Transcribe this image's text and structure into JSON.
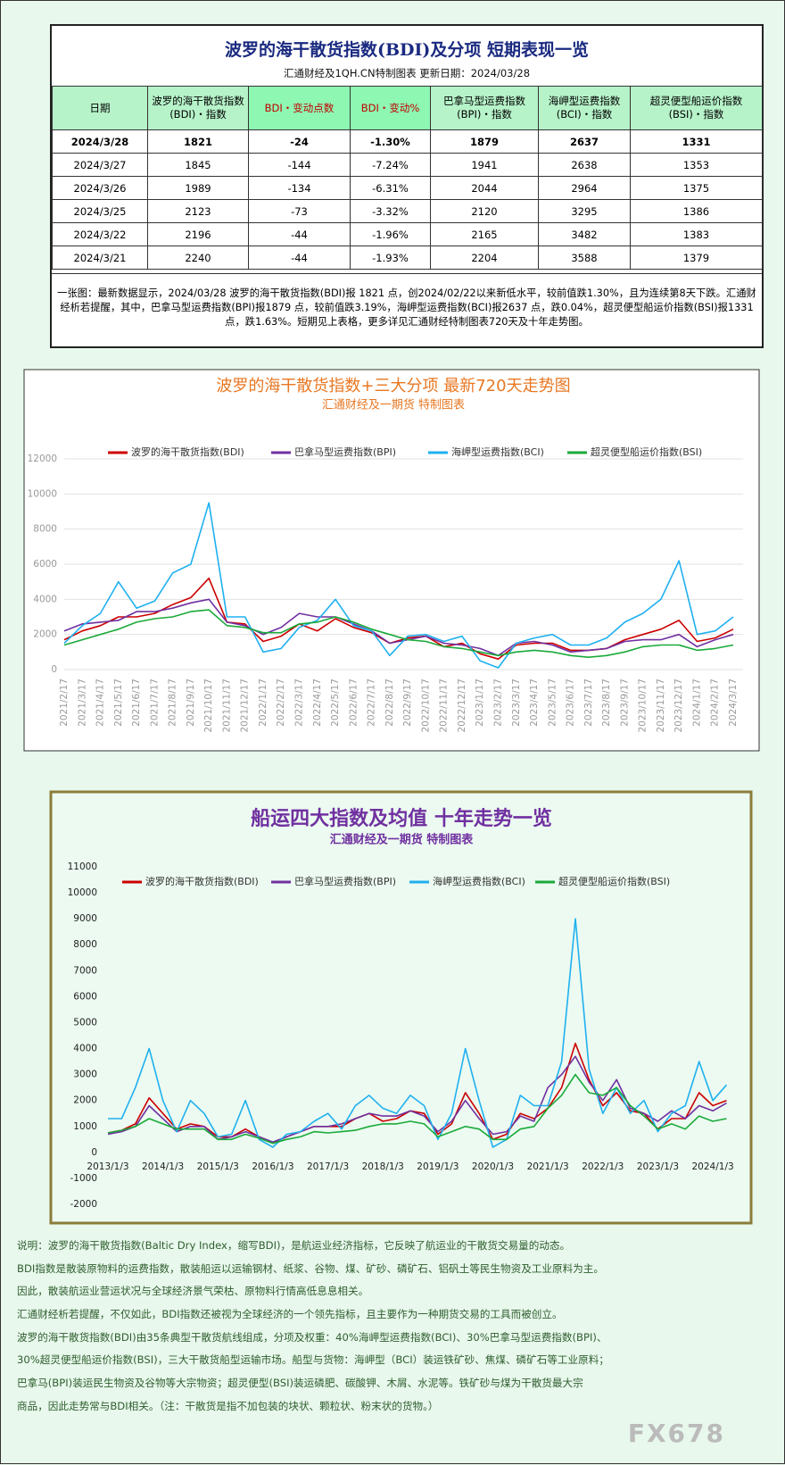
{
  "header": {
    "title": "波罗的海干散货指数(BDI)及分项  短期表现一览",
    "subtitle": "汇通财经及1QH.CN特制图表    更新日期：2024/03/28"
  },
  "table": {
    "columns": [
      "日期",
      "波罗的海干散货指数\n(BDI)・指数",
      "BDI・变动点数",
      "BDI・变动%",
      "巴拿马型运费指数\n(BPI)・指数",
      "海岬型运费指数\n(BCI)・指数",
      "超灵便型船运价指数\n(BSI)・指数"
    ],
    "rows": [
      [
        "2024/3/28",
        "1821",
        "-24",
        "-1.30%",
        "1879",
        "2637",
        "1331"
      ],
      [
        "2024/3/27",
        "1845",
        "-144",
        "-7.24%",
        "1941",
        "2638",
        "1353"
      ],
      [
        "2024/3/26",
        "1989",
        "-134",
        "-6.31%",
        "2044",
        "2964",
        "1375"
      ],
      [
        "2024/3/25",
        "2123",
        "-73",
        "-3.32%",
        "2120",
        "3295",
        "1386"
      ],
      [
        "2024/3/22",
        "2196",
        "-44",
        "-1.96%",
        "2165",
        "3482",
        "1383"
      ],
      [
        "2024/3/21",
        "2240",
        "-44",
        "-1.93%",
        "2204",
        "3588",
        "1379"
      ]
    ]
  },
  "summary": "一张图：最新数据显示，2024/03/28 波罗的海干散货指数(BDI)报 1821 点，创2024/02/22以来新低水平，较前值跌1.30%，且为连续第8天下跌。汇通财经析若提醒，其中，巴拿马型运费指数(BPI)报1879 点，较前值跌3.19%，海岬型运费指数(BCI)报2637 点，跌0.04%，超灵便型船运价指数(BSI)报1331 点，跌1.63%。短期见上表格，更多详见汇通财经特制图表720天及十年走势图。",
  "chart_data": [
    {
      "type": "line",
      "title": "波罗的海干散货指数+三大分项  最新720天走势图",
      "subtitle": "汇通财经及一期货  特制图表",
      "categories": [
        "2021/2/17",
        "2021/3/17",
        "2021/4/17",
        "2021/5/17",
        "2021/6/17",
        "2021/7/17",
        "2021/8/17",
        "2021/9/17",
        "2021/10/17",
        "2021/11/17",
        "2021/12/17",
        "2022/1/17",
        "2022/2/17",
        "2022/3/17",
        "2022/4/17",
        "2022/5/17",
        "2022/6/17",
        "2022/7/17",
        "2022/8/17",
        "2022/9/17",
        "2022/10/17",
        "2022/11/17",
        "2022/12/17",
        "2023/1/17",
        "2023/2/17",
        "2023/3/17",
        "2023/4/17",
        "2023/5/17",
        "2023/6/17",
        "2023/7/17",
        "2023/8/17",
        "2023/9/17",
        "2023/10/17",
        "2023/11/17",
        "2023/12/17",
        "2024/1/17",
        "2024/2/17",
        "2024/3/17"
      ],
      "series": [
        {
          "name": "波罗的海干散货指数(BDI)",
          "color": "#cc0000",
          "values": [
            1700,
            2200,
            2500,
            3000,
            3000,
            3200,
            3700,
            4100,
            5200,
            2700,
            2600,
            1600,
            1900,
            2600,
            2200,
            2900,
            2400,
            2100,
            1500,
            1800,
            1900,
            1300,
            1500,
            900,
            600,
            1400,
            1500,
            1500,
            1100,
            1100,
            1200,
            1700,
            2000,
            2300,
            2800,
            1600,
            1800,
            2300
          ]
        },
        {
          "name": "巴拿马型运费指数(BPI)",
          "color": "#7030a0",
          "values": [
            2200,
            2600,
            2700,
            2800,
            3300,
            3300,
            3500,
            3800,
            4000,
            2700,
            2500,
            2000,
            2400,
            3200,
            3000,
            3000,
            2600,
            2200,
            1500,
            1700,
            1900,
            1500,
            1400,
            1200,
            800,
            1500,
            1600,
            1400,
            1000,
            1100,
            1200,
            1600,
            1700,
            1700,
            2000,
            1300,
            1700,
            2000
          ]
        },
        {
          "name": "海岬型运费指数(BCI)",
          "color": "#1fb0f0",
          "values": [
            1500,
            2500,
            3200,
            5000,
            3500,
            3900,
            5500,
            6000,
            9500,
            3000,
            3000,
            1000,
            1200,
            2400,
            2800,
            4000,
            2500,
            2200,
            800,
            1900,
            2000,
            1600,
            1900,
            500,
            100,
            1500,
            1800,
            2000,
            1400,
            1400,
            1800,
            2700,
            3200,
            4000,
            6200,
            2000,
            2200,
            3000
          ]
        },
        {
          "name": "超灵便型船运价指数(BSI)",
          "color": "#1aaa3a",
          "values": [
            1400,
            1700,
            2000,
            2300,
            2700,
            2900,
            3000,
            3300,
            3400,
            2500,
            2400,
            2100,
            2100,
            2600,
            2700,
            3000,
            2700,
            2300,
            2000,
            1700,
            1600,
            1300,
            1200,
            1000,
            800,
            1000,
            1100,
            1000,
            800,
            700,
            800,
            1000,
            1300,
            1400,
            1400,
            1100,
            1200,
            1400
          ]
        }
      ],
      "ylim": [
        0,
        12000
      ],
      "yticks": [
        0,
        2000,
        4000,
        6000,
        8000,
        10000,
        12000
      ],
      "grid": true
    },
    {
      "type": "line",
      "title": "船运四大指数及均值 十年走势一览",
      "subtitle": "汇通财经及一期货 特制图表",
      "x": [
        "2013/1/3",
        "2013/4/3",
        "2013/7/3",
        "2013/10/3",
        "2014/1/3",
        "2014/4/3",
        "2014/7/3",
        "2014/10/3",
        "2015/1/3",
        "2015/4/3",
        "2015/7/3",
        "2015/10/3",
        "2016/1/3",
        "2016/4/3",
        "2016/7/3",
        "2016/10/3",
        "2017/1/3",
        "2017/4/3",
        "2017/7/3",
        "2017/10/3",
        "2018/1/3",
        "2018/4/3",
        "2018/7/3",
        "2018/10/3",
        "2019/1/3",
        "2019/4/3",
        "2019/7/3",
        "2019/10/3",
        "2020/1/3",
        "2020/4/3",
        "2020/7/3",
        "2020/10/3",
        "2021/1/3",
        "2021/4/3",
        "2021/7/3",
        "2021/10/3",
        "2022/1/3",
        "2022/4/3",
        "2022/7/3",
        "2022/10/3",
        "2023/1/3",
        "2023/4/3",
        "2023/7/3",
        "2023/10/3",
        "2024/1/3",
        "2024/4/3"
      ],
      "xticks": [
        "2013/1/3",
        "2014/1/3",
        "2015/1/3",
        "2016/1/3",
        "2017/1/3",
        "2018/1/3",
        "2019/1/3",
        "2020/1/3",
        "2021/1/3",
        "2022/1/3",
        "2023/1/3",
        "2024/1/3"
      ],
      "series": [
        {
          "name": "波罗的海干散货指数(BDI)",
          "color": "#cc0000",
          "values": [
            750,
            850,
            1100,
            2100,
            1500,
            900,
            1100,
            1000,
            600,
            600,
            900,
            600,
            350,
            600,
            800,
            1000,
            1000,
            1000,
            1300,
            1500,
            1200,
            1300,
            1600,
            1500,
            700,
            1100,
            2300,
            1500,
            500,
            700,
            1500,
            1300,
            1700,
            2500,
            4200,
            2800,
            1800,
            2300,
            1600,
            1500,
            900,
            1300,
            1300,
            2300,
            1800,
            2000
          ]
        },
        {
          "name": "巴拿马型运费指数(BPI)",
          "color": "#7030a0",
          "values": [
            700,
            800,
            1000,
            1800,
            1300,
            800,
            1000,
            1000,
            500,
            600,
            800,
            600,
            400,
            600,
            800,
            1000,
            1000,
            1100,
            1300,
            1500,
            1400,
            1400,
            1600,
            1400,
            800,
            1200,
            2000,
            1300,
            700,
            800,
            1400,
            1200,
            2500,
            3000,
            3700,
            2700,
            2000,
            2800,
            1700,
            1500,
            1200,
            1600,
            1300,
            1800,
            1600,
            1900
          ]
        },
        {
          "name": "海岬型运费指数(BCI)",
          "color": "#1fb0f0",
          "values": [
            1300,
            1300,
            2500,
            4000,
            2000,
            800,
            2000,
            1500,
            600,
            700,
            2000,
            500,
            200,
            700,
            800,
            1200,
            1500,
            900,
            1800,
            2200,
            1700,
            1500,
            2200,
            1800,
            500,
            1500,
            4000,
            2000,
            200,
            500,
            2200,
            1800,
            1800,
            3500,
            9000,
            3200,
            1500,
            2500,
            1500,
            2000,
            800,
            1500,
            1800,
            3500,
            2000,
            2600
          ]
        },
        {
          "name": "超灵便型船运价指数(BSI)",
          "color": "#1aaa3a",
          "values": [
            750,
            850,
            1000,
            1300,
            1100,
            900,
            900,
            900,
            500,
            500,
            700,
            550,
            350,
            500,
            600,
            800,
            750,
            800,
            850,
            1000,
            1100,
            1100,
            1200,
            1100,
            600,
            800,
            1000,
            900,
            500,
            500,
            900,
            1000,
            1700,
            2200,
            3000,
            2300,
            2200,
            2500,
            1800,
            1400,
            900,
            1100,
            900,
            1400,
            1200,
            1300
          ]
        }
      ],
      "ylim": [
        -2000,
        11000
      ],
      "yticks": [
        -2000,
        -1000,
        0,
        1000,
        2000,
        3000,
        4000,
        5000,
        6000,
        7000,
        8000,
        9000,
        10000,
        11000
      ],
      "grid": false
    }
  ],
  "notes": [
    "说明：波罗的海干散货指数(Baltic Dry Index，缩写BDI)，是航运业经济指标，它反映了航运业的干散货交易量的动态。",
    "BDI指数是散装原物料的运费指数，散装船运以运输钢材、纸浆、谷物、煤、矿砂、磷矿石、铝矾土等民生物资及工业原料为主。",
    "因此，散装航运业营运状况与全球经济景气荣枯、原物料行情高低息息相关。",
    "汇通财经析若提醒，不仅如此，BDI指数还被视为全球经济的一个领先指标，且主要作为一种期货交易的工具而被创立。",
    "波罗的海干散货指数(BDI)由35条典型干散货航线组成，分项及权重：40%海岬型运费指数(BCI)、30%巴拿马型运费指数(BPI)、",
    "30%超灵便型船运价指数(BSI)，三大干散货船型运输市场。船型与货物：海岬型（BCI）装运铁矿砂、焦煤、磷矿石等工业原料；",
    "巴拿马(BPI)装运民生物资及谷物等大宗物资；超灵便型(BSI)装运磷肥、碳酸钾、木屑、水泥等。铁矿砂与煤为干散货最大宗",
    "商品，因此走势常与BDI相关。（注：干散货是指不加包装的块状、颗粒状、粉末状的货物。）"
  ],
  "watermark": "FX678"
}
